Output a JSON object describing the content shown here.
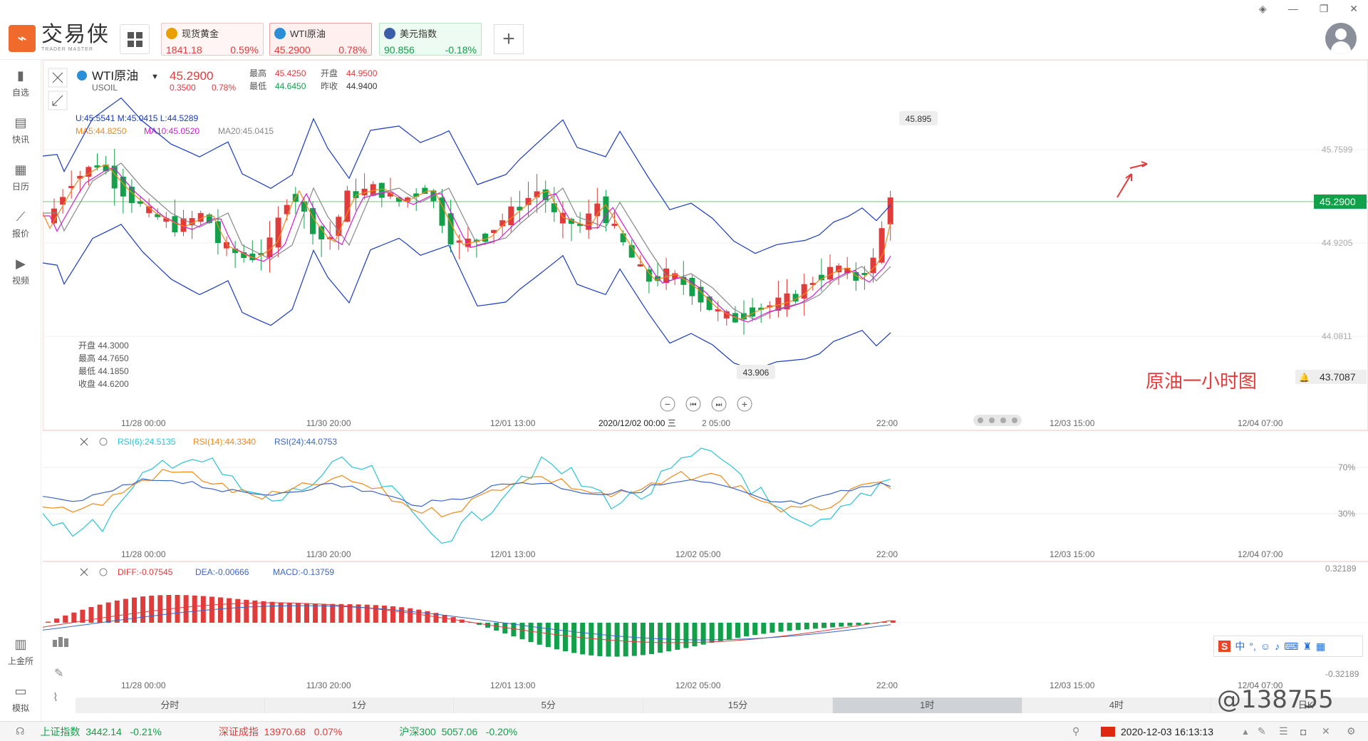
{
  "app": {
    "logo_cn": "交易侠",
    "logo_en": "TRADER MASTER"
  },
  "tabs": [
    {
      "name": "现货黄金",
      "price": "1841.18",
      "change": "0.59%",
      "color": "#e8a000"
    },
    {
      "name": "WTI原油",
      "price": "45.2900",
      "change": "0.78%",
      "color": "#2a8fd6"
    },
    {
      "name": "美元指数",
      "price": "90.856",
      "change": "-0.18%",
      "color": "#3c5ea8"
    }
  ],
  "leftnav": [
    {
      "label": "自选",
      "icon": "bookmark-icon"
    },
    {
      "label": "快讯",
      "icon": "news-icon"
    },
    {
      "label": "日历",
      "icon": "calendar-icon"
    },
    {
      "label": "报价",
      "icon": "quote-icon"
    },
    {
      "label": "视频",
      "icon": "video-icon"
    }
  ],
  "leftnav_bottom": [
    {
      "label": "上金所",
      "icon": "sge-icon"
    },
    {
      "label": "模拟",
      "icon": "simulate-icon"
    }
  ],
  "symbol": {
    "name": "WTI原油",
    "code": "USOIL",
    "price": "45.2900",
    "change": "0.3500",
    "pct": "0.78%",
    "high_label": "最高",
    "high": "45.4250",
    "open_label": "开盘",
    "open": "44.9500",
    "low_label": "最低",
    "low": "44.6450",
    "prev_label": "昨收",
    "prev": "44.9400"
  },
  "indicators": {
    "boll": "U:45.5541   M:45.0415   L:44.5289",
    "ma5": "MA5:44.8250",
    "ma10": "MA10:45.0520",
    "ma20": "MA20:45.0415",
    "ohlc": [
      "开盘 44.3000",
      "最高 44.7650",
      "最低 44.1850",
      "收盘 44.6200"
    ],
    "rsi6": "RSI(6):24.5135",
    "rsi14": "RSI(14):44.3340",
    "rsi24": "RSI(24):44.0753",
    "diff": "DIFF:-0.07545",
    "dea": "DEA:-0.00666",
    "macd": "MACD:-0.13759"
  },
  "axes": {
    "price_ticks": [
      "45.7599",
      "44.9205",
      "44.0811"
    ],
    "current_price": "45.2900",
    "alert_price": "43.7087",
    "high_mark": "45.895",
    "low_mark": "43.906",
    "x_main": [
      "11/28 00:00",
      "11/30 20:00",
      "12/01 13:00",
      "2020/12/02 00:00 三",
      "2 05:00",
      "22:00",
      "12/03 15:00",
      "12/04 07:00"
    ],
    "x_sub": [
      "11/28 00:00",
      "11/30 20:00",
      "12/01 13:00",
      "12/02 05:00",
      "22:00",
      "12/03 15:00",
      "12/04 07:00"
    ],
    "rsi_ticks": [
      "70%",
      "30%"
    ],
    "macd_ticks": [
      "0.32189",
      "-0.32189"
    ]
  },
  "annotation": "原油一小时图",
  "timeframes": [
    "分时",
    "1分",
    "5分",
    "15分",
    "1时",
    "4时",
    "日K"
  ],
  "active_timeframe": "1时",
  "status": {
    "indices": [
      {
        "name": "上证指数",
        "value": "3442.14",
        "pct": "-0.21%"
      },
      {
        "name": "深证成指",
        "value": "13970.68",
        "pct": "0.07%"
      },
      {
        "name": "沪深300",
        "value": "5057.06",
        "pct": "-0.20%"
      }
    ],
    "datetime": "2020-12-03 16:13:13"
  },
  "ime": {
    "label": "中"
  },
  "watermark": "@138755",
  "colors": {
    "up": "#e03c3c",
    "down": "#12a04a",
    "accent": "#f06a2b"
  }
}
